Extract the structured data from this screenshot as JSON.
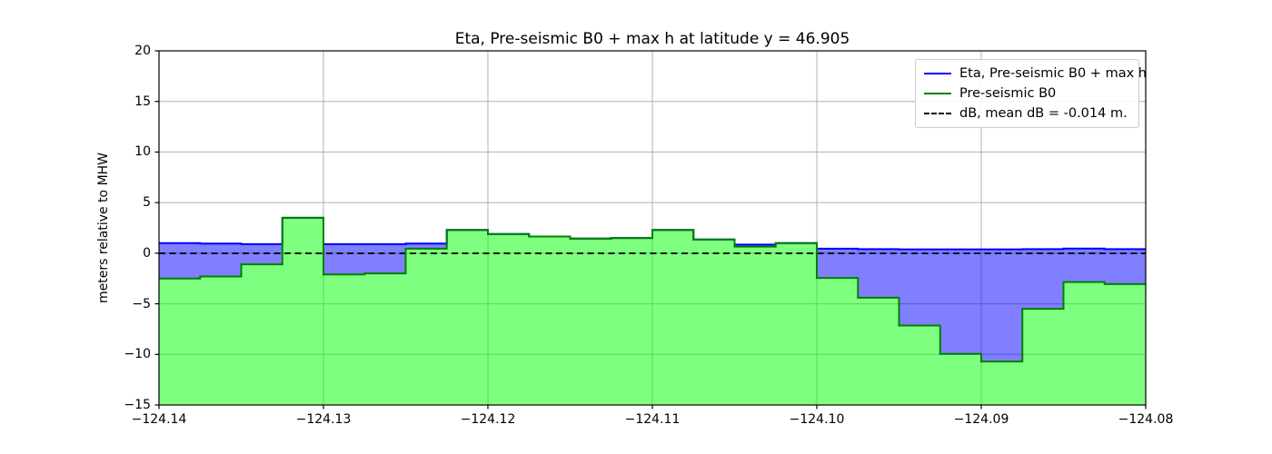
{
  "title": "Eta, Pre-seismic B0 + max h at latitude y = 46.905",
  "ylabel": "meters relative to MHW",
  "legend": {
    "items": [
      {
        "label": "Eta, Pre-seismic B0 + max h",
        "color": "#0000ff",
        "dash": "solid"
      },
      {
        "label": "Pre-seismic B0",
        "color": "#008000",
        "dash": "solid"
      },
      {
        "label": "dB, mean dB = -0.014 m.",
        "color": "#000000",
        "dash": "dashed"
      }
    ]
  },
  "colors": {
    "blue_line": "#0000ff",
    "blue_fill": "rgba(0,0,255,0.5)",
    "green_line": "#008000",
    "green_fill": "rgba(0,255,0,0.5)",
    "dash_line": "#000000",
    "grid": "#b0b0b0",
    "spine": "#000000",
    "background": "#ffffff"
  },
  "chart_data": {
    "type": "area",
    "title": "Eta, Pre-seismic B0 + max h at latitude y = 46.905",
    "xlabel": "",
    "ylabel": "meters relative to MHW",
    "xlim": [
      -124.14,
      -124.08
    ],
    "ylim": [
      -15,
      20
    ],
    "grid": true,
    "legend_position": "upper right",
    "xticks": [
      {
        "v": -124.14,
        "label": "−124.14"
      },
      {
        "v": -124.13,
        "label": "−124.13"
      },
      {
        "v": -124.12,
        "label": "−124.12"
      },
      {
        "v": -124.11,
        "label": "−124.11"
      },
      {
        "v": -124.1,
        "label": "−124.10"
      },
      {
        "v": -124.09,
        "label": "−124.09"
      },
      {
        "v": -124.08,
        "label": "−124.08"
      }
    ],
    "yticks": [
      {
        "v": 20,
        "label": "20"
      },
      {
        "v": 15,
        "label": "15"
      },
      {
        "v": 10,
        "label": "10"
      },
      {
        "v": 5,
        "label": "5"
      },
      {
        "v": 0,
        "label": "0"
      },
      {
        "v": -5,
        "label": "−5"
      },
      {
        "v": -10,
        "label": "−10"
      },
      {
        "v": -15,
        "label": "−15"
      }
    ],
    "cell_width_deg": 0.0025,
    "x_left_edges": [
      -124.14,
      -124.1375,
      -124.135,
      -124.1325,
      -124.13,
      -124.1275,
      -124.125,
      -124.1225,
      -124.12,
      -124.1175,
      -124.115,
      -124.1125,
      -124.11,
      -124.1075,
      -124.105,
      -124.1025,
      -124.1,
      -124.0975,
      -124.095,
      -124.0925,
      -124.09,
      -124.0875,
      -124.085,
      -124.0825
    ],
    "series": [
      {
        "name": "Eta, Pre-seismic B0 + max h",
        "type": "step-fill",
        "values": [
          1.0,
          0.95,
          0.9,
          3.5,
          0.9,
          0.9,
          0.95,
          2.3,
          1.9,
          1.65,
          1.45,
          1.5,
          2.3,
          1.35,
          0.85,
          1.0,
          0.45,
          0.4,
          0.38,
          0.38,
          0.38,
          0.4,
          0.46,
          0.4
        ]
      },
      {
        "name": "Pre-seismic B0",
        "type": "step-fill",
        "values": [
          -2.5,
          -2.3,
          -1.1,
          3.5,
          -2.1,
          -2.0,
          0.45,
          2.3,
          1.9,
          1.65,
          1.45,
          1.5,
          2.3,
          1.35,
          0.65,
          1.0,
          -2.45,
          -4.4,
          -7.15,
          -9.95,
          -10.7,
          -5.5,
          -2.85,
          -3.05
        ]
      },
      {
        "name": "dB, mean dB = -0.014 m.",
        "type": "dashed-hline",
        "value": -0.014
      }
    ]
  }
}
